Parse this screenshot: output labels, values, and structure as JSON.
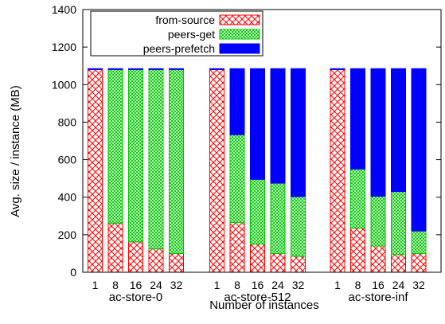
{
  "chart_data": {
    "type": "bar",
    "stacked": true,
    "ylabel": "Avg. size / instance (MB)",
    "xlabel": "Number of instances",
    "ylim": [
      0,
      1400
    ],
    "yticks": [
      0,
      200,
      400,
      600,
      800,
      1000,
      1200,
      1400
    ],
    "legend_position": "top-left",
    "series": [
      {
        "name": "from-source",
        "color": "#ff0000",
        "pattern": "crosshatch"
      },
      {
        "name": "peers-get",
        "color": "#00c800",
        "pattern": "dense-crosshatch"
      },
      {
        "name": "peers-prefetch",
        "color": "#0000ff",
        "pattern": "solid"
      }
    ],
    "groups": [
      {
        "name": "ac-store-0",
        "categories": [
          "1",
          "8",
          "16",
          "24",
          "32"
        ],
        "from_source": [
          1080,
          262,
          162,
          125,
          100
        ],
        "peers_get": [
          0,
          818,
          918,
          955,
          980
        ],
        "peers_prefetch": [
          5,
          5,
          5,
          5,
          5
        ]
      },
      {
        "name": "ac-store-512",
        "categories": [
          "1",
          "8",
          "16",
          "24",
          "32"
        ],
        "from_source": [
          1080,
          265,
          150,
          100,
          85
        ],
        "peers_get": [
          0,
          468,
          345,
          375,
          318
        ],
        "peers_prefetch": [
          5,
          352,
          590,
          610,
          682
        ]
      },
      {
        "name": "ac-store-inf",
        "categories": [
          "1",
          "8",
          "16",
          "24",
          "32"
        ],
        "from_source": [
          1080,
          235,
          140,
          95,
          100
        ],
        "peers_get": [
          0,
          315,
          265,
          335,
          120
        ],
        "peers_prefetch": [
          5,
          535,
          680,
          655,
          865
        ]
      }
    ]
  }
}
